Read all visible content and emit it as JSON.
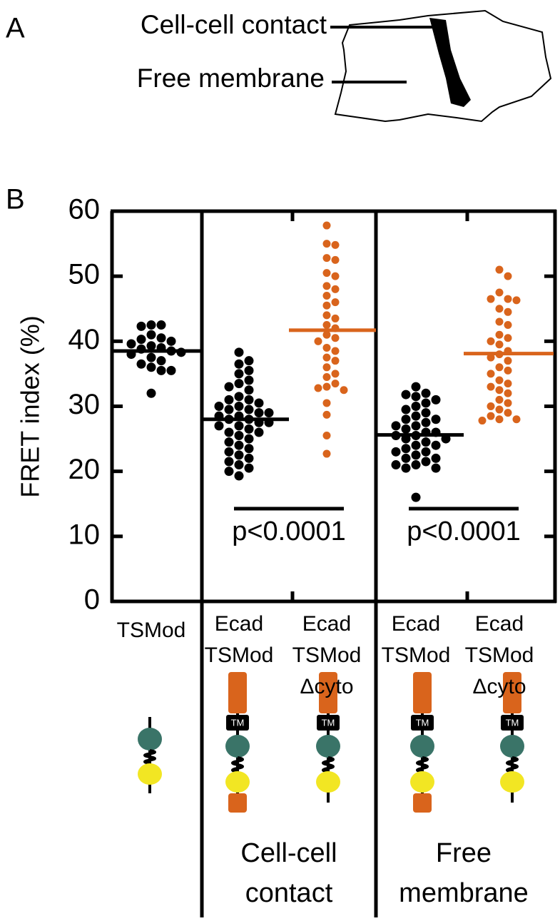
{
  "panel_a": {
    "label": "A",
    "labels": [
      "Cell-cell contact",
      "Free membrane"
    ]
  },
  "chart_data": {
    "type": "dotplot",
    "panel_label": "B",
    "y_label": "FRET index (%)",
    "ylim": [
      0,
      60
    ],
    "yticks": [
      0,
      10,
      20,
      30,
      40,
      50,
      60
    ],
    "categories": [
      [
        "TSMod"
      ],
      [
        "Ecad",
        "TSMod"
      ],
      [
        "Ecad",
        "TSMod",
        "Δcyto"
      ],
      [
        "Ecad",
        "TSMod"
      ],
      [
        "Ecad",
        "TSMod",
        "Δcyto"
      ]
    ],
    "groups": [
      {
        "color": "#000000",
        "mean": 38.5,
        "values": [
          42.5,
          42.5,
          42.3,
          41,
          40.5,
          40.3,
          40,
          39.6,
          39.3,
          39,
          38.8,
          38.5,
          38.3,
          38,
          37.5,
          37,
          36.5,
          36,
          35.5,
          35.5,
          32
        ]
      },
      {
        "color": "#000000",
        "mean": 28,
        "values": [
          38.3,
          37,
          36.5,
          35.5,
          35,
          34,
          33.5,
          33,
          32.5,
          31.5,
          31,
          31,
          30.5,
          30,
          30,
          29.5,
          29.5,
          29,
          29,
          28.5,
          28.5,
          28,
          28,
          27.5,
          27.5,
          27,
          27,
          26.5,
          26,
          26,
          25.5,
          25,
          24.5,
          24,
          23.5,
          23,
          22.5,
          22,
          21.5,
          21,
          20.5,
          20,
          19.3
        ]
      },
      {
        "color": "#d9641c",
        "mean": 41.7,
        "values": [
          57.8,
          55,
          54.8,
          52.8,
          52.5,
          50.5,
          50,
          48.5,
          48,
          47,
          46,
          45.5,
          44,
          43.5,
          42.5,
          42,
          41,
          40.5,
          40,
          39,
          38.5,
          37.5,
          37,
          36,
          35,
          34.5,
          33.5,
          33,
          32.8,
          32.5,
          30.5,
          28.7,
          25.5,
          22.7
        ]
      },
      {
        "color": "#000000",
        "mean": 25.6,
        "values": [
          33,
          32,
          31.8,
          31.5,
          31,
          30.5,
          30,
          29.5,
          29,
          28.5,
          28,
          28,
          27.5,
          27,
          27,
          26.5,
          26,
          26,
          25.5,
          25.5,
          25,
          25,
          24.5,
          24,
          24,
          23.5,
          23,
          23,
          22.5,
          22,
          22,
          21.5,
          21,
          21,
          20.5,
          20.5,
          16
        ]
      },
      {
        "color": "#d9641c",
        "mean": 38.1,
        "values": [
          51,
          50,
          47.5,
          46.5,
          46.5,
          46.3,
          45,
          44.5,
          43,
          42.5,
          41,
          40.5,
          40,
          39.5,
          38.5,
          38,
          37.5,
          37,
          36,
          35.5,
          35,
          34,
          33.5,
          33,
          32.5,
          32,
          31,
          30.5,
          30,
          29.5,
          29,
          28.5,
          28,
          28,
          27.8
        ]
      }
    ],
    "significance": [
      "p<0.0001",
      "p<0.0001"
    ],
    "sections": [
      [
        "Cell-cell",
        "contact"
      ],
      [
        "Free",
        "membrane"
      ]
    ],
    "molecule_label": "TM"
  }
}
